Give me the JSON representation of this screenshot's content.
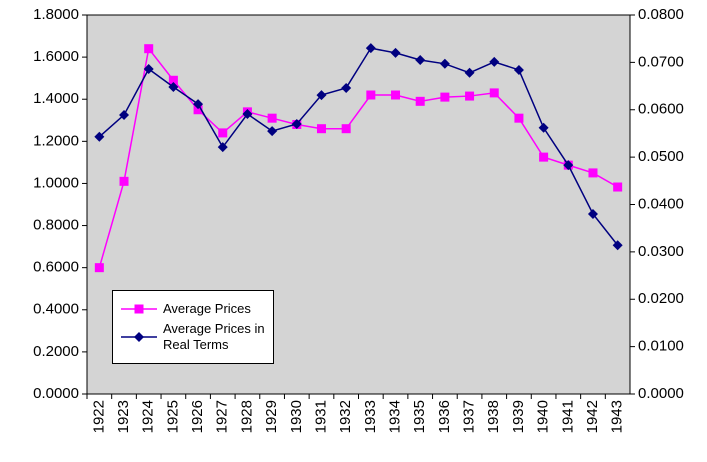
{
  "chart_data": {
    "type": "line",
    "categories": [
      "1922",
      "1923",
      "1924",
      "1925",
      "1926",
      "1927",
      "1928",
      "1929",
      "1930",
      "1931",
      "1932",
      "1933",
      "1934",
      "1935",
      "1936",
      "1937",
      "1938",
      "1939",
      "1940",
      "1941",
      "1942",
      "1943"
    ],
    "series": [
      {
        "name": "Average Prices",
        "color": "#ff00ff",
        "marker": "square",
        "axis": "y",
        "values": [
          0.6,
          1.01,
          1.64,
          1.49,
          1.35,
          1.24,
          1.34,
          1.31,
          1.28,
          1.26,
          1.26,
          1.42,
          1.42,
          1.39,
          1.41,
          1.415,
          1.43,
          1.31,
          1.125,
          1.087,
          1.05,
          0.983
        ]
      },
      {
        "name": "Average Prices in Real Terms",
        "color": "#000080",
        "marker": "diamond",
        "axis": "y2",
        "values": [
          0.0543,
          0.0589,
          0.0686,
          0.0648,
          0.0612,
          0.0521,
          0.0591,
          0.0555,
          0.057,
          0.0631,
          0.0646,
          0.073,
          0.072,
          0.0705,
          0.0697,
          0.0678,
          0.0701,
          0.0684,
          0.0562,
          0.0483,
          0.038,
          0.0314
        ]
      }
    ],
    "ylim": [
      0,
      1.8
    ],
    "yticks": [
      {
        "value": 0,
        "label": "0.0000"
      },
      {
        "value": 0.2,
        "label": "0.2000"
      },
      {
        "value": 0.4,
        "label": "0.4000"
      },
      {
        "value": 0.6,
        "label": "0.6000"
      },
      {
        "value": 0.8,
        "label": "0.8000"
      },
      {
        "value": 1.0,
        "label": "1.0000"
      },
      {
        "value": 1.2,
        "label": "1.2000"
      },
      {
        "value": 1.4,
        "label": "1.4000"
      },
      {
        "value": 1.6,
        "label": "1.6000"
      },
      {
        "value": 1.8,
        "label": "1.8000"
      }
    ],
    "y2lim": [
      0,
      0.08
    ],
    "y2ticks": [
      {
        "value": 0,
        "label": "0.0000"
      },
      {
        "value": 0.01,
        "label": "0.0100"
      },
      {
        "value": 0.02,
        "label": "0.0200"
      },
      {
        "value": 0.03,
        "label": "0.0300"
      },
      {
        "value": 0.04,
        "label": "0.0400"
      },
      {
        "value": 0.05,
        "label": "0.0500"
      },
      {
        "value": 0.06,
        "label": "0.0600"
      },
      {
        "value": 0.07,
        "label": "0.0700"
      },
      {
        "value": 0.08,
        "label": "0.0800"
      }
    ],
    "grid": false,
    "legend": "lower left",
    "plot_background": "#d4d4d4"
  }
}
